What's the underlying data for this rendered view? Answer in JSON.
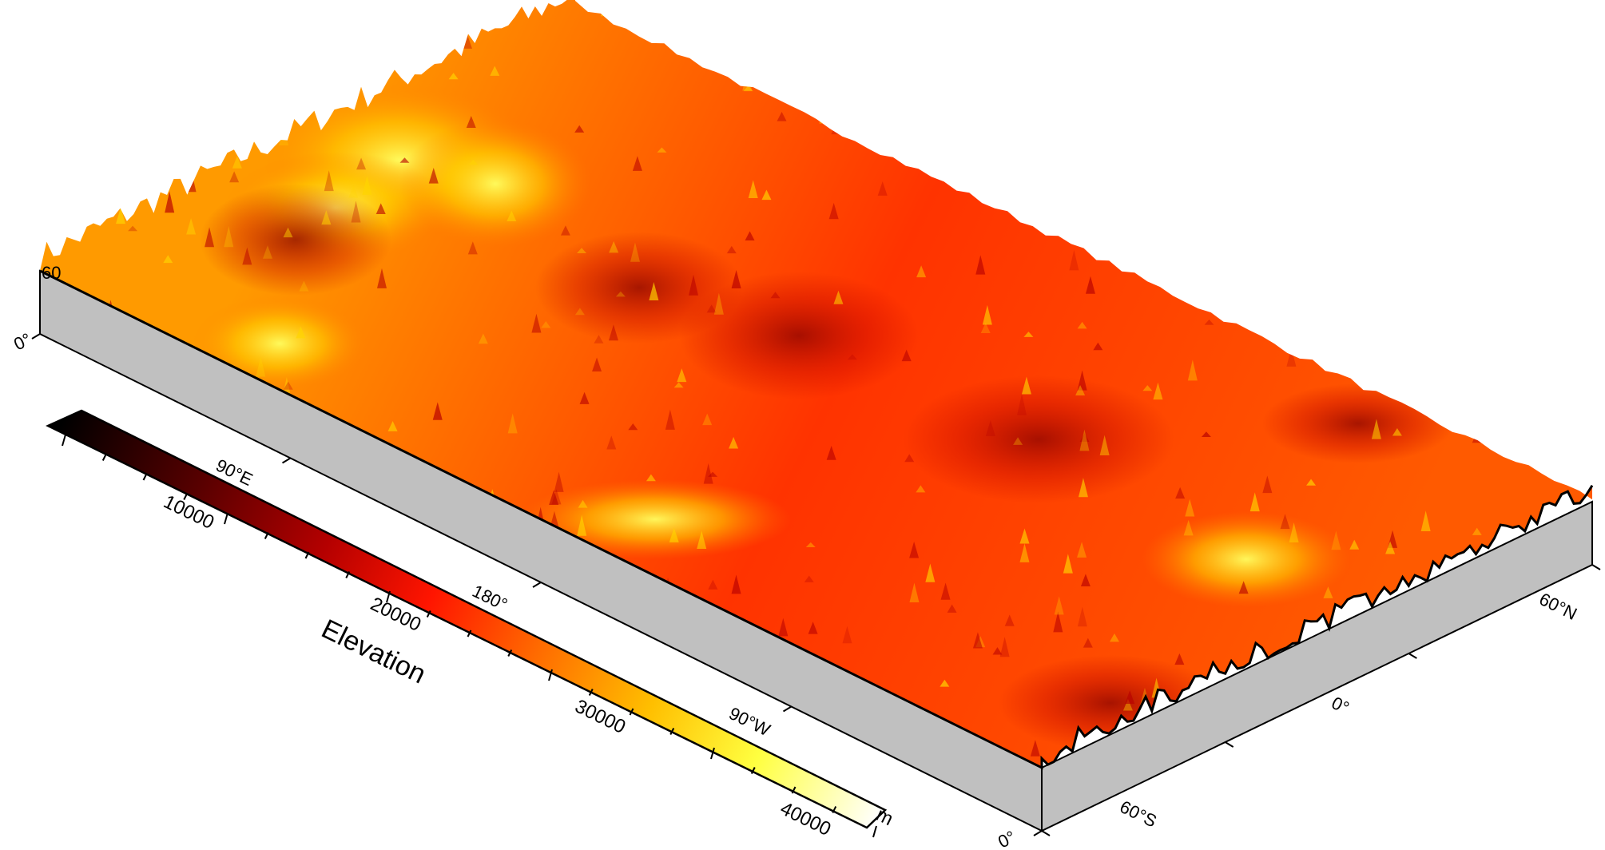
{
  "map": {
    "longitude_labels": [
      "0°",
      "90°E",
      "180°",
      "90°W",
      "0°"
    ],
    "latitude_labels": [
      "60°S",
      "0°",
      "60°N"
    ],
    "clipped_corner_label": "60",
    "colors": {
      "box_side": "#c0c0c0",
      "frame": "#000000"
    }
  },
  "colorbar": {
    "title": "Elevation",
    "unit": "m",
    "tick_labels": [
      "10000",
      "20000",
      "30000",
      "40000"
    ],
    "colormap": "hot",
    "colors": [
      "#000000",
      "#5a0000",
      "#b40000",
      "#ff1500",
      "#ff6a00",
      "#ffbf00",
      "#ffff40",
      "#ffffff"
    ]
  }
}
